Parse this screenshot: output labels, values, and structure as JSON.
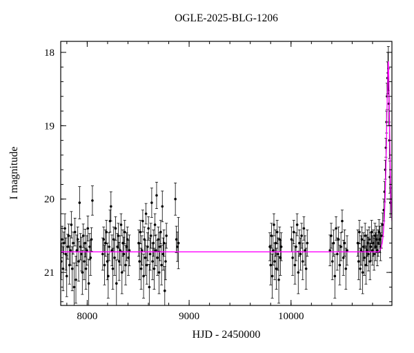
{
  "chart_data": {
    "type": "scatter",
    "title": "OGLE-2025-BLG-1206",
    "xlabel": "HJD - 2450000",
    "ylabel": "I magnitude",
    "xlim": [
      7740,
      10990
    ],
    "ylim": [
      17.85,
      21.45
    ],
    "y_axis_inverted": true,
    "xticks": [
      8000,
      9000,
      10000
    ],
    "yticks": [
      18,
      19,
      20,
      21
    ],
    "x_minor_step": 200,
    "y_minor_step": 0.2,
    "grid": false,
    "legend": "none",
    "colors": {
      "points": "#000000",
      "model": "#ff00ff",
      "frame": "#000000",
      "background": "#ffffff"
    },
    "baseline_magnitude": 20.72,
    "peak": {
      "hjd": 10955,
      "magnitude": 18.12
    },
    "points_format": [
      "hjd",
      "i_mag",
      "error"
    ],
    "points": [
      [
        7745,
        20.85,
        0.25
      ],
      [
        7754,
        20.55,
        0.18
      ],
      [
        7763,
        20.95,
        0.3
      ],
      [
        7772,
        20.6,
        0.15
      ],
      [
        7781,
        20.4,
        0.2
      ],
      [
        7790,
        20.75,
        0.22
      ],
      [
        7799,
        21.05,
        0.28
      ],
      [
        7808,
        20.65,
        0.17
      ],
      [
        7817,
        20.5,
        0.16
      ],
      [
        7826,
        20.9,
        0.26
      ],
      [
        7835,
        20.7,
        0.2
      ],
      [
        7844,
        20.35,
        0.18
      ],
      [
        7853,
        20.95,
        0.3
      ],
      [
        7862,
        20.6,
        0.15
      ],
      [
        7871,
        21.2,
        0.33
      ],
      [
        7880,
        20.45,
        0.19
      ],
      [
        7889,
        21.1,
        0.32
      ],
      [
        7898,
        20.7,
        0.21
      ],
      [
        7907,
        20.55,
        0.17
      ],
      [
        7916,
        20.85,
        0.27
      ],
      [
        7925,
        20.05,
        0.22
      ],
      [
        7934,
        20.65,
        0.18
      ],
      [
        7943,
        20.75,
        0.23
      ],
      [
        7952,
        21.0,
        0.3
      ],
      [
        7961,
        20.5,
        0.16
      ],
      [
        7970,
        20.85,
        0.25
      ],
      [
        7979,
        20.6,
        0.19
      ],
      [
        7988,
        20.95,
        0.28
      ],
      [
        7997,
        20.7,
        0.2
      ],
      [
        8006,
        20.4,
        0.17
      ],
      [
        8015,
        21.15,
        0.33
      ],
      [
        8024,
        20.65,
        0.18
      ],
      [
        8033,
        20.8,
        0.24
      ],
      [
        8042,
        20.55,
        0.16
      ],
      [
        8051,
        20.02,
        0.2
      ],
      [
        8152,
        20.75,
        0.22
      ],
      [
        8161,
        20.55,
        0.17
      ],
      [
        8170,
        20.9,
        0.27
      ],
      [
        8179,
        20.6,
        0.18
      ],
      [
        8188,
        20.45,
        0.16
      ],
      [
        8197,
        20.85,
        0.25
      ],
      [
        8206,
        21.05,
        0.3
      ],
      [
        8215,
        20.65,
        0.19
      ],
      [
        8224,
        20.3,
        0.15
      ],
      [
        8233,
        20.1,
        0.2
      ],
      [
        8242,
        20.7,
        0.21
      ],
      [
        8251,
        20.95,
        0.28
      ],
      [
        8260,
        20.55,
        0.17
      ],
      [
        8269,
        20.8,
        0.24
      ],
      [
        8278,
        20.4,
        0.16
      ],
      [
        8287,
        21.15,
        0.32
      ],
      [
        8296,
        20.65,
        0.18
      ],
      [
        8305,
        20.5,
        0.17
      ],
      [
        8314,
        20.85,
        0.26
      ],
      [
        8323,
        20.7,
        0.2
      ],
      [
        8332,
        20.35,
        0.15
      ],
      [
        8341,
        21.0,
        0.29
      ],
      [
        8350,
        20.6,
        0.18
      ],
      [
        8359,
        20.75,
        0.23
      ],
      [
        8368,
        20.45,
        0.16
      ],
      [
        8377,
        20.9,
        0.27
      ],
      [
        8386,
        20.65,
        0.19
      ],
      [
        8395,
        20.55,
        0.17
      ],
      [
        8404,
        20.8,
        0.24
      ],
      [
        8413,
        20.7,
        0.21
      ],
      [
        8505,
        20.6,
        0.18
      ],
      [
        8513,
        20.85,
        0.25
      ],
      [
        8521,
        20.45,
        0.16
      ],
      [
        8529,
        20.95,
        0.28
      ],
      [
        8537,
        20.7,
        0.2
      ],
      [
        8545,
        20.3,
        0.15
      ],
      [
        8553,
        21.05,
        0.3
      ],
      [
        8561,
        20.55,
        0.17
      ],
      [
        8569,
        20.8,
        0.24
      ],
      [
        8577,
        20.2,
        0.14
      ],
      [
        8585,
        20.9,
        0.26
      ],
      [
        8593,
        20.65,
        0.19
      ],
      [
        8601,
        20.4,
        0.16
      ],
      [
        8609,
        21.2,
        0.31
      ],
      [
        8617,
        20.75,
        0.22
      ],
      [
        8625,
        20.5,
        0.17
      ],
      [
        8633,
        20.05,
        0.2
      ],
      [
        8641,
        20.85,
        0.25
      ],
      [
        8649,
        20.6,
        0.18
      ],
      [
        8657,
        20.95,
        0.28
      ],
      [
        8665,
        20.35,
        0.15
      ],
      [
        8673,
        20.7,
        0.21
      ],
      [
        8681,
        19.95,
        0.18
      ],
      [
        8689,
        20.8,
        0.24
      ],
      [
        8697,
        20.55,
        0.17
      ],
      [
        8705,
        21.0,
        0.29
      ],
      [
        8713,
        20.65,
        0.19
      ],
      [
        8721,
        20.45,
        0.16
      ],
      [
        8729,
        20.9,
        0.27
      ],
      [
        8737,
        20.1,
        0.21
      ],
      [
        8745,
        20.75,
        0.22
      ],
      [
        8753,
        20.6,
        0.18
      ],
      [
        8761,
        21.25,
        0.33
      ],
      [
        8769,
        20.85,
        0.25
      ],
      [
        8777,
        20.5,
        0.17
      ],
      [
        8865,
        20.0,
        0.22
      ],
      [
        8875,
        20.55,
        0.18
      ],
      [
        8885,
        20.65,
        0.2
      ],
      [
        8895,
        20.6,
        0.35
      ],
      [
        9792,
        20.65,
        0.19
      ],
      [
        9800,
        20.9,
        0.27
      ],
      [
        9808,
        20.5,
        0.17
      ],
      [
        9816,
        21.05,
        0.3
      ],
      [
        9824,
        20.7,
        0.2
      ],
      [
        9832,
        20.35,
        0.15
      ],
      [
        9840,
        20.85,
        0.25
      ],
      [
        9848,
        20.6,
        0.18
      ],
      [
        9856,
        20.95,
        0.28
      ],
      [
        9864,
        20.45,
        0.16
      ],
      [
        9872,
        20.75,
        0.22
      ],
      [
        9880,
        21.1,
        0.32
      ],
      [
        9888,
        20.55,
        0.17
      ],
      [
        9896,
        20.8,
        0.24
      ],
      [
        9904,
        20.65,
        0.19
      ],
      [
        10005,
        20.55,
        0.17
      ],
      [
        10016,
        20.8,
        0.24
      ],
      [
        10027,
        20.45,
        0.16
      ],
      [
        10038,
        20.9,
        0.26
      ],
      [
        10049,
        20.65,
        0.19
      ],
      [
        10060,
        20.35,
        0.15
      ],
      [
        10071,
        21.0,
        0.29
      ],
      [
        10082,
        20.6,
        0.18
      ],
      [
        10093,
        20.75,
        0.22
      ],
      [
        10104,
        20.5,
        0.17
      ],
      [
        10115,
        20.85,
        0.25
      ],
      [
        10126,
        20.4,
        0.16
      ],
      [
        10137,
        20.7,
        0.2
      ],
      [
        10148,
        20.95,
        0.28
      ],
      [
        10159,
        20.6,
        0.18
      ],
      [
        10382,
        20.7,
        0.21
      ],
      [
        10394,
        20.5,
        0.17
      ],
      [
        10406,
        20.85,
        0.25
      ],
      [
        10418,
        20.6,
        0.18
      ],
      [
        10430,
        21.05,
        0.3
      ],
      [
        10442,
        20.4,
        0.16
      ],
      [
        10454,
        20.75,
        0.22
      ],
      [
        10466,
        20.55,
        0.17
      ],
      [
        10478,
        20.9,
        0.27
      ],
      [
        10490,
        20.65,
        0.19
      ],
      [
        10502,
        20.3,
        0.15
      ],
      [
        10514,
        20.8,
        0.24
      ],
      [
        10526,
        20.6,
        0.18
      ],
      [
        10538,
        20.95,
        0.28
      ],
      [
        10550,
        20.7,
        0.2
      ],
      [
        10655,
        20.6,
        0.18
      ],
      [
        10663,
        20.85,
        0.25
      ],
      [
        10671,
        20.45,
        0.16
      ],
      [
        10679,
        20.95,
        0.28
      ],
      [
        10687,
        20.7,
        0.2
      ],
      [
        10695,
        20.55,
        0.17
      ],
      [
        10703,
        21.0,
        0.29
      ],
      [
        10711,
        20.65,
        0.19
      ],
      [
        10719,
        20.8,
        0.24
      ],
      [
        10727,
        20.5,
        0.17
      ],
      [
        10735,
        20.9,
        0.26
      ],
      [
        10743,
        20.7,
        0.21
      ],
      [
        10751,
        20.6,
        0.18
      ],
      [
        10759,
        20.75,
        0.23
      ],
      [
        10767,
        20.55,
        0.17
      ],
      [
        10775,
        20.85,
        0.25
      ],
      [
        10783,
        20.65,
        0.19
      ],
      [
        10791,
        20.45,
        0.16
      ],
      [
        10799,
        20.7,
        0.2
      ],
      [
        10807,
        20.6,
        0.18
      ],
      [
        10815,
        20.75,
        0.22
      ],
      [
        10823,
        20.5,
        0.17
      ],
      [
        10831,
        20.65,
        0.19
      ],
      [
        10839,
        20.55,
        0.18
      ],
      [
        10847,
        20.7,
        0.21
      ],
      [
        10855,
        20.6,
        0.18
      ],
      [
        10863,
        20.45,
        0.17
      ],
      [
        10871,
        20.55,
        0.18
      ],
      [
        10879,
        20.65,
        0.19
      ],
      [
        10887,
        20.5,
        0.17
      ],
      [
        10900,
        20.35,
        0.16
      ],
      [
        10910,
        20.15,
        0.15
      ],
      [
        10918,
        19.9,
        0.14
      ],
      [
        10925,
        19.6,
        0.13
      ],
      [
        10931,
        19.3,
        0.13
      ],
      [
        10937,
        18.95,
        0.15
      ],
      [
        10942,
        18.6,
        0.18
      ],
      [
        10947,
        18.35,
        0.22
      ],
      [
        10951,
        18.28,
        0.28
      ],
      [
        10955,
        18.22,
        0.3
      ],
      [
        10960,
        18.7,
        0.3
      ],
      [
        10965,
        19.2,
        0.25
      ],
      [
        10970,
        19.7,
        0.22
      ],
      [
        10975,
        20.05,
        0.2
      ]
    ],
    "model_curve_format": [
      "hjd",
      "i_mag"
    ],
    "model_curve": [
      [
        7740,
        20.72
      ],
      [
        10860,
        20.72
      ],
      [
        10880,
        20.68
      ],
      [
        10895,
        20.6
      ],
      [
        10905,
        20.48
      ],
      [
        10915,
        20.28
      ],
      [
        10923,
        20.0
      ],
      [
        10930,
        19.65
      ],
      [
        10936,
        19.25
      ],
      [
        10941,
        18.85
      ],
      [
        10946,
        18.5
      ],
      [
        10950,
        18.28
      ],
      [
        10953,
        18.15
      ],
      [
        10955,
        18.12
      ],
      [
        10957,
        18.18
      ],
      [
        10961,
        18.45
      ],
      [
        10966,
        18.9
      ],
      [
        10971,
        19.35
      ],
      [
        10976,
        19.75
      ],
      [
        10981,
        20.05
      ],
      [
        10990,
        20.3
      ]
    ]
  }
}
